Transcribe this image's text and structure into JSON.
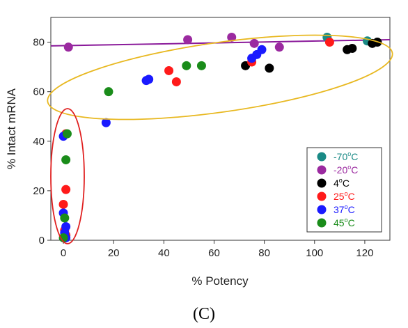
{
  "panel_label": "(C)",
  "chart_data": {
    "type": "scatter",
    "xlabel": "% Potency",
    "ylabel": "% Intact mRNA",
    "xlim": [
      -5,
      130
    ],
    "ylim": [
      0,
      90
    ],
    "xticks": [
      0,
      20,
      40,
      60,
      80,
      100,
      120
    ],
    "yticks": [
      0,
      20,
      40,
      60,
      80
    ],
    "grid": false,
    "legend_position": "bottom-right",
    "series": [
      {
        "name": "-70",
        "unit": "oC",
        "color": "#1a8a86",
        "points": [
          [
            105,
            82
          ],
          [
            121,
            80.5
          ]
        ]
      },
      {
        "name": "-20",
        "unit": "oC",
        "color": "#9b2aa0",
        "points": [
          [
            2,
            78
          ],
          [
            49.5,
            81
          ],
          [
            67,
            82
          ],
          [
            76,
            79.5
          ],
          [
            86,
            78
          ]
        ]
      },
      {
        "name": "4",
        "unit": "oC",
        "color": "#000000",
        "points": [
          [
            72.5,
            70.5
          ],
          [
            82,
            69.5
          ],
          [
            113,
            77
          ],
          [
            115,
            77.5
          ],
          [
            123,
            79.5
          ],
          [
            125,
            80
          ]
        ]
      },
      {
        "name": "25",
        "unit": "oC",
        "color": "#ff1a1a",
        "points": [
          [
            42,
            68.5
          ],
          [
            45,
            64
          ],
          [
            75,
            72
          ],
          [
            106,
            80
          ],
          [
            1,
            43
          ],
          [
            1,
            20.5
          ],
          [
            0,
            14.5
          ],
          [
            0.5,
            4
          ],
          [
            1,
            2
          ]
        ]
      },
      {
        "name": "37",
        "unit": "oC",
        "color": "#1a1aff",
        "points": [
          [
            17,
            47.5
          ],
          [
            33,
            64.5
          ],
          [
            34,
            65
          ],
          [
            75,
            73.5
          ],
          [
            77,
            75
          ],
          [
            79,
            77
          ],
          [
            0,
            42
          ],
          [
            0,
            11
          ],
          [
            1,
            5.5
          ],
          [
            0.5,
            3
          ],
          [
            1,
            1
          ]
        ]
      },
      {
        "name": "45",
        "unit": "oC",
        "color": "#1a8c1a",
        "points": [
          [
            18,
            60
          ],
          [
            49,
            70.5
          ],
          [
            55,
            70.5
          ],
          [
            1.5,
            43
          ],
          [
            1,
            32.5
          ],
          [
            0.5,
            9
          ],
          [
            0,
            1
          ]
        ]
      }
    ],
    "annotations": [
      {
        "shape": "ellipse",
        "color": "#e8b820",
        "description": "ellipse enclosing upper-right cluster"
      },
      {
        "shape": "ellipse",
        "color": "#e02020",
        "description": "ellipse enclosing points near 0% potency"
      },
      {
        "shape": "line",
        "color": "#8a1a9a",
        "from": [
          -5,
          78.5
        ],
        "to": [
          130,
          81
        ]
      }
    ]
  }
}
